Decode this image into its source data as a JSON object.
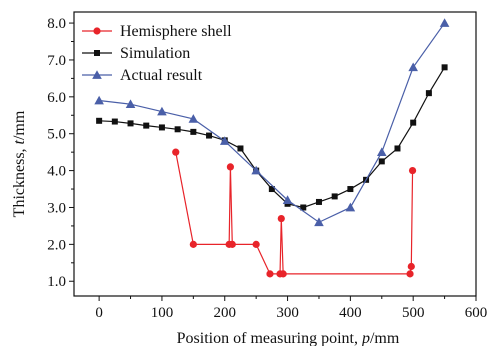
{
  "chart_data": {
    "type": "line",
    "xlabel_main": "Position of measuring point, ",
    "xlabel_var": "p",
    "xlabel_unit": "/mm",
    "ylabel_main": "Thickness, ",
    "ylabel_var": "t",
    "ylabel_unit": "/mm",
    "xlim": [
      -40,
      600
    ],
    "ylim": [
      0.6,
      8.3
    ],
    "xticks": [
      0,
      100,
      200,
      300,
      400,
      500,
      600
    ],
    "yticks": [
      1.0,
      2.0,
      3.0,
      4.0,
      5.0,
      6.0,
      7.0,
      8.0
    ],
    "xtick_labels": [
      "0",
      "100",
      "200",
      "300",
      "400",
      "500",
      "600"
    ],
    "ytick_labels": [
      "1.0",
      "2.0",
      "3.0",
      "4.0",
      "5.0",
      "6.0",
      "7.0",
      "8.0"
    ],
    "legend_position": "top-left",
    "series": [
      {
        "name": "Hemisphere shell",
        "color": "#e8242a",
        "marker": "circle",
        "x": [
          122,
          150,
          207,
          209,
          212,
          250,
          272,
          288,
          290,
          293,
          495,
          497,
          499
        ],
        "y": [
          4.5,
          2.0,
          2.0,
          4.1,
          2.0,
          2.0,
          1.2,
          1.2,
          2.7,
          1.2,
          1.2,
          1.4,
          4.0
        ]
      },
      {
        "name": "Simulation",
        "color": "#111111",
        "marker": "square",
        "x": [
          0,
          25,
          50,
          75,
          100,
          125,
          150,
          175,
          200,
          225,
          250,
          275,
          300,
          325,
          350,
          375,
          400,
          425,
          450,
          475,
          500,
          525,
          550
        ],
        "y": [
          5.35,
          5.33,
          5.28,
          5.22,
          5.17,
          5.12,
          5.05,
          4.95,
          4.82,
          4.6,
          4.0,
          3.5,
          3.1,
          3.0,
          3.15,
          3.3,
          3.5,
          3.75,
          4.25,
          4.6,
          5.3,
          6.1,
          6.8
        ]
      },
      {
        "name": "Actual result",
        "color": "#4a5fa8",
        "marker": "triangle",
        "x": [
          0,
          50,
          100,
          150,
          200,
          250,
          300,
          350,
          400,
          450,
          500,
          550
        ],
        "y": [
          5.9,
          5.8,
          5.6,
          5.4,
          4.8,
          4.0,
          3.2,
          2.6,
          3.0,
          4.5,
          6.8,
          8.0
        ]
      }
    ]
  }
}
